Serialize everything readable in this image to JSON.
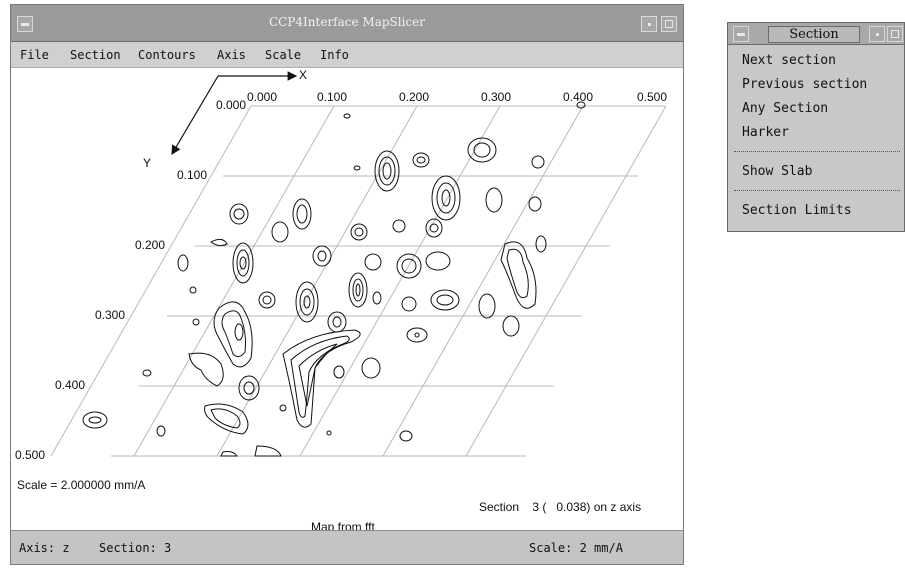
{
  "window": {
    "title": "CCP4Interface MapSlicer"
  },
  "menubar": {
    "items": [
      "File",
      "Section",
      "Contours",
      "Axis",
      "Scale",
      "Info"
    ]
  },
  "canvas": {
    "axes": {
      "x_label": "X",
      "y_label": "Y"
    },
    "x_ticks": [
      "0.000",
      "0.100",
      "0.200",
      "0.300",
      "0.400",
      "0.500"
    ],
    "y_ticks": [
      "0.000",
      "0.100",
      "0.200",
      "0.300",
      "0.400",
      "0.500"
    ],
    "scale_text": "Scale = 2.000000 mm/A",
    "section_text": "Section    3 (   0.038) on z axis",
    "map_text": "Map from fft"
  },
  "statusbar": {
    "axis": "Axis: z",
    "section": "Section: 3",
    "scale": "Scale: 2 mm/A"
  },
  "section_menu": {
    "title": "Section",
    "items": [
      "Next section",
      "Previous section",
      "Any Section",
      "Harker",
      "Show Slab",
      "Section Limits"
    ]
  },
  "colors": {
    "titlebar": "#9a9a9a",
    "menubar": "#d0d0d0",
    "statusbar": "#c4c4c4",
    "grid": "#b8b8b8",
    "contour": "#111111"
  }
}
